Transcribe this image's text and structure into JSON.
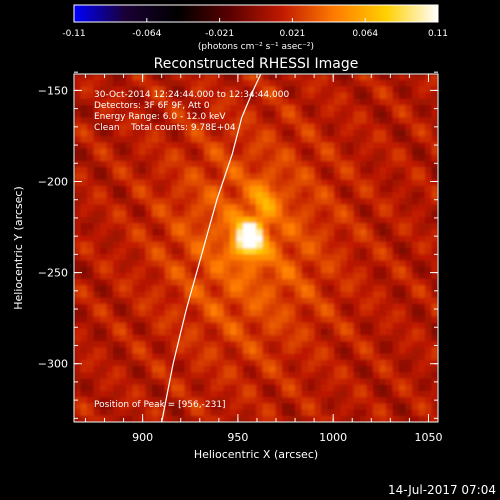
{
  "chart_data": {
    "type": "heatmap",
    "title": "Reconstructed RHESSI Image",
    "xlabel": "Heliocentric X (arcsec)",
    "ylabel": "Heliocentric Y (arcsec)",
    "xlim": [
      864,
      1055
    ],
    "ylim": [
      -332,
      -141
    ],
    "x_ticks": [
      900,
      950,
      1000,
      1050
    ],
    "y_ticks": [
      -150,
      -200,
      -250,
      -300
    ],
    "colorbar": {
      "min": -0.11,
      "max": 0.11,
      "ticks": [
        "-0.11",
        "-0.064",
        "-0.021",
        "0.021",
        "0.064",
        "0.11"
      ],
      "unit_label": "(photons cm⁻² s⁻¹ asec⁻²)",
      "colormap": [
        "#0000ff",
        "#1a0033",
        "#000000",
        "#5a0000",
        "#c01a00",
        "#ff7a00",
        "#ffd000",
        "#ffffff"
      ]
    },
    "source_peak": {
      "x": 956,
      "y": -231,
      "value": 0.11
    },
    "secondary_source": {
      "x": 964,
      "y": -210,
      "value": 0.03
    },
    "limb_curve": {
      "x": [
        910,
        916,
        923,
        931,
        939,
        947,
        952,
        958,
        962
      ],
      "y": [
        -332,
        -300,
        -270,
        -240,
        -210,
        -185,
        -165,
        -150,
        -141
      ]
    },
    "info_lines": [
      "30-Oct-2014 12:24:44.000 to 12:34:44.000",
      "Detectors: 3F 6F 9F, Att 0",
      "Energy Range: 6.0 - 12.0 keV",
      "Clean    Total counts: 9.78E+04"
    ],
    "peak_label": "Position of Peak = [956,-231]",
    "footer_date": "14-Jul-2017 07:04"
  }
}
